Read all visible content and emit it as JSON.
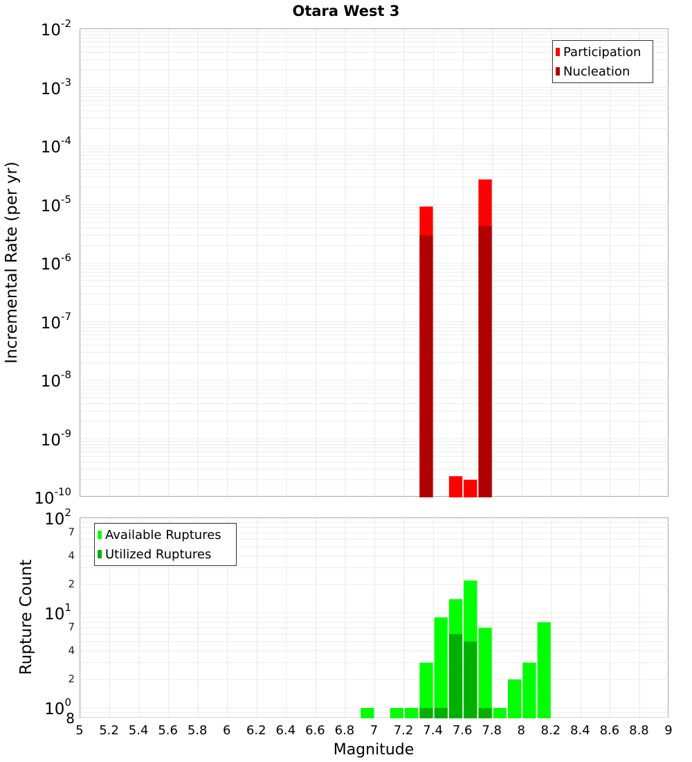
{
  "title": "Otara West 3",
  "top_plot": {
    "ylabel": "Incremental Rate (per yr)",
    "yticks": [
      {
        "base": "10",
        "exp": "-2"
      },
      {
        "base": "10",
        "exp": "-3"
      },
      {
        "base": "10",
        "exp": "-4"
      },
      {
        "base": "10",
        "exp": "-5"
      },
      {
        "base": "10",
        "exp": "-6"
      },
      {
        "base": "10",
        "exp": "-7"
      },
      {
        "base": "10",
        "exp": "-8"
      },
      {
        "base": "10",
        "exp": "-9"
      },
      {
        "base": "10",
        "exp": "-10"
      }
    ],
    "legend": [
      {
        "label": "Participation",
        "color": "#ff0000"
      },
      {
        "label": "Nucleation",
        "color": "#b00000"
      }
    ]
  },
  "bottom_plot": {
    "ylabel": "Rupture Count",
    "xlabel": "Magnitude",
    "major_ticks": [
      {
        "base": "10",
        "exp": "2"
      },
      {
        "base": "10",
        "exp": "1"
      },
      {
        "base": "10",
        "exp": "0"
      }
    ],
    "minor_ticks": [
      "7",
      "4",
      "2",
      "7",
      "4",
      "2",
      "8"
    ],
    "legend": [
      {
        "label": "Available Ruptures",
        "color": "#00ff00"
      },
      {
        "label": "Utilized Ruptures",
        "color": "#00b000"
      }
    ]
  },
  "xticks": [
    "5",
    "5.2",
    "5.4",
    "5.6",
    "5.8",
    "6",
    "6.2",
    "6.4",
    "6.6",
    "6.8",
    "7",
    "7.2",
    "7.4",
    "7.6",
    "7.8",
    "8",
    "8.2",
    "8.4",
    "8.6",
    "8.8",
    "9"
  ],
  "chart_data": [
    {
      "type": "bar",
      "title": "Otara West 3",
      "xlabel": "Magnitude",
      "ylabel": "Incremental Rate (per yr)",
      "yscale": "log",
      "ylim": [
        1e-10,
        0.01
      ],
      "xlim": [
        5,
        9
      ],
      "x": [
        7.35,
        7.55,
        7.65,
        7.75
      ],
      "series": [
        {
          "name": "Participation",
          "color": "#ff0000",
          "values": [
            9.3e-06,
            2.3e-10,
            2e-10,
            2.7e-05
          ]
        },
        {
          "name": "Nucleation",
          "color": "#b00000",
          "values": [
            3e-06,
            0,
            0,
            4.3e-06
          ]
        }
      ],
      "legend_position": "top-right",
      "grid": true
    },
    {
      "type": "bar",
      "xlabel": "Magnitude",
      "ylabel": "Rupture Count",
      "yscale": "log",
      "ylim": [
        0.8,
        100
      ],
      "xlim": [
        5,
        9
      ],
      "x": [
        6.95,
        7.15,
        7.25,
        7.35,
        7.45,
        7.55,
        7.65,
        7.75,
        7.85,
        7.95,
        8.05,
        8.15
      ],
      "series": [
        {
          "name": "Available Ruptures",
          "color": "#00ff00",
          "values": [
            1,
            1,
            1,
            3,
            9,
            14,
            22,
            7,
            1,
            2,
            3,
            8
          ]
        },
        {
          "name": "Utilized Ruptures",
          "color": "#00b000",
          "values": [
            0,
            0,
            0,
            1,
            1,
            6,
            5,
            1,
            0,
            0,
            0,
            0
          ]
        }
      ],
      "legend_position": "top-left",
      "grid": true
    }
  ]
}
